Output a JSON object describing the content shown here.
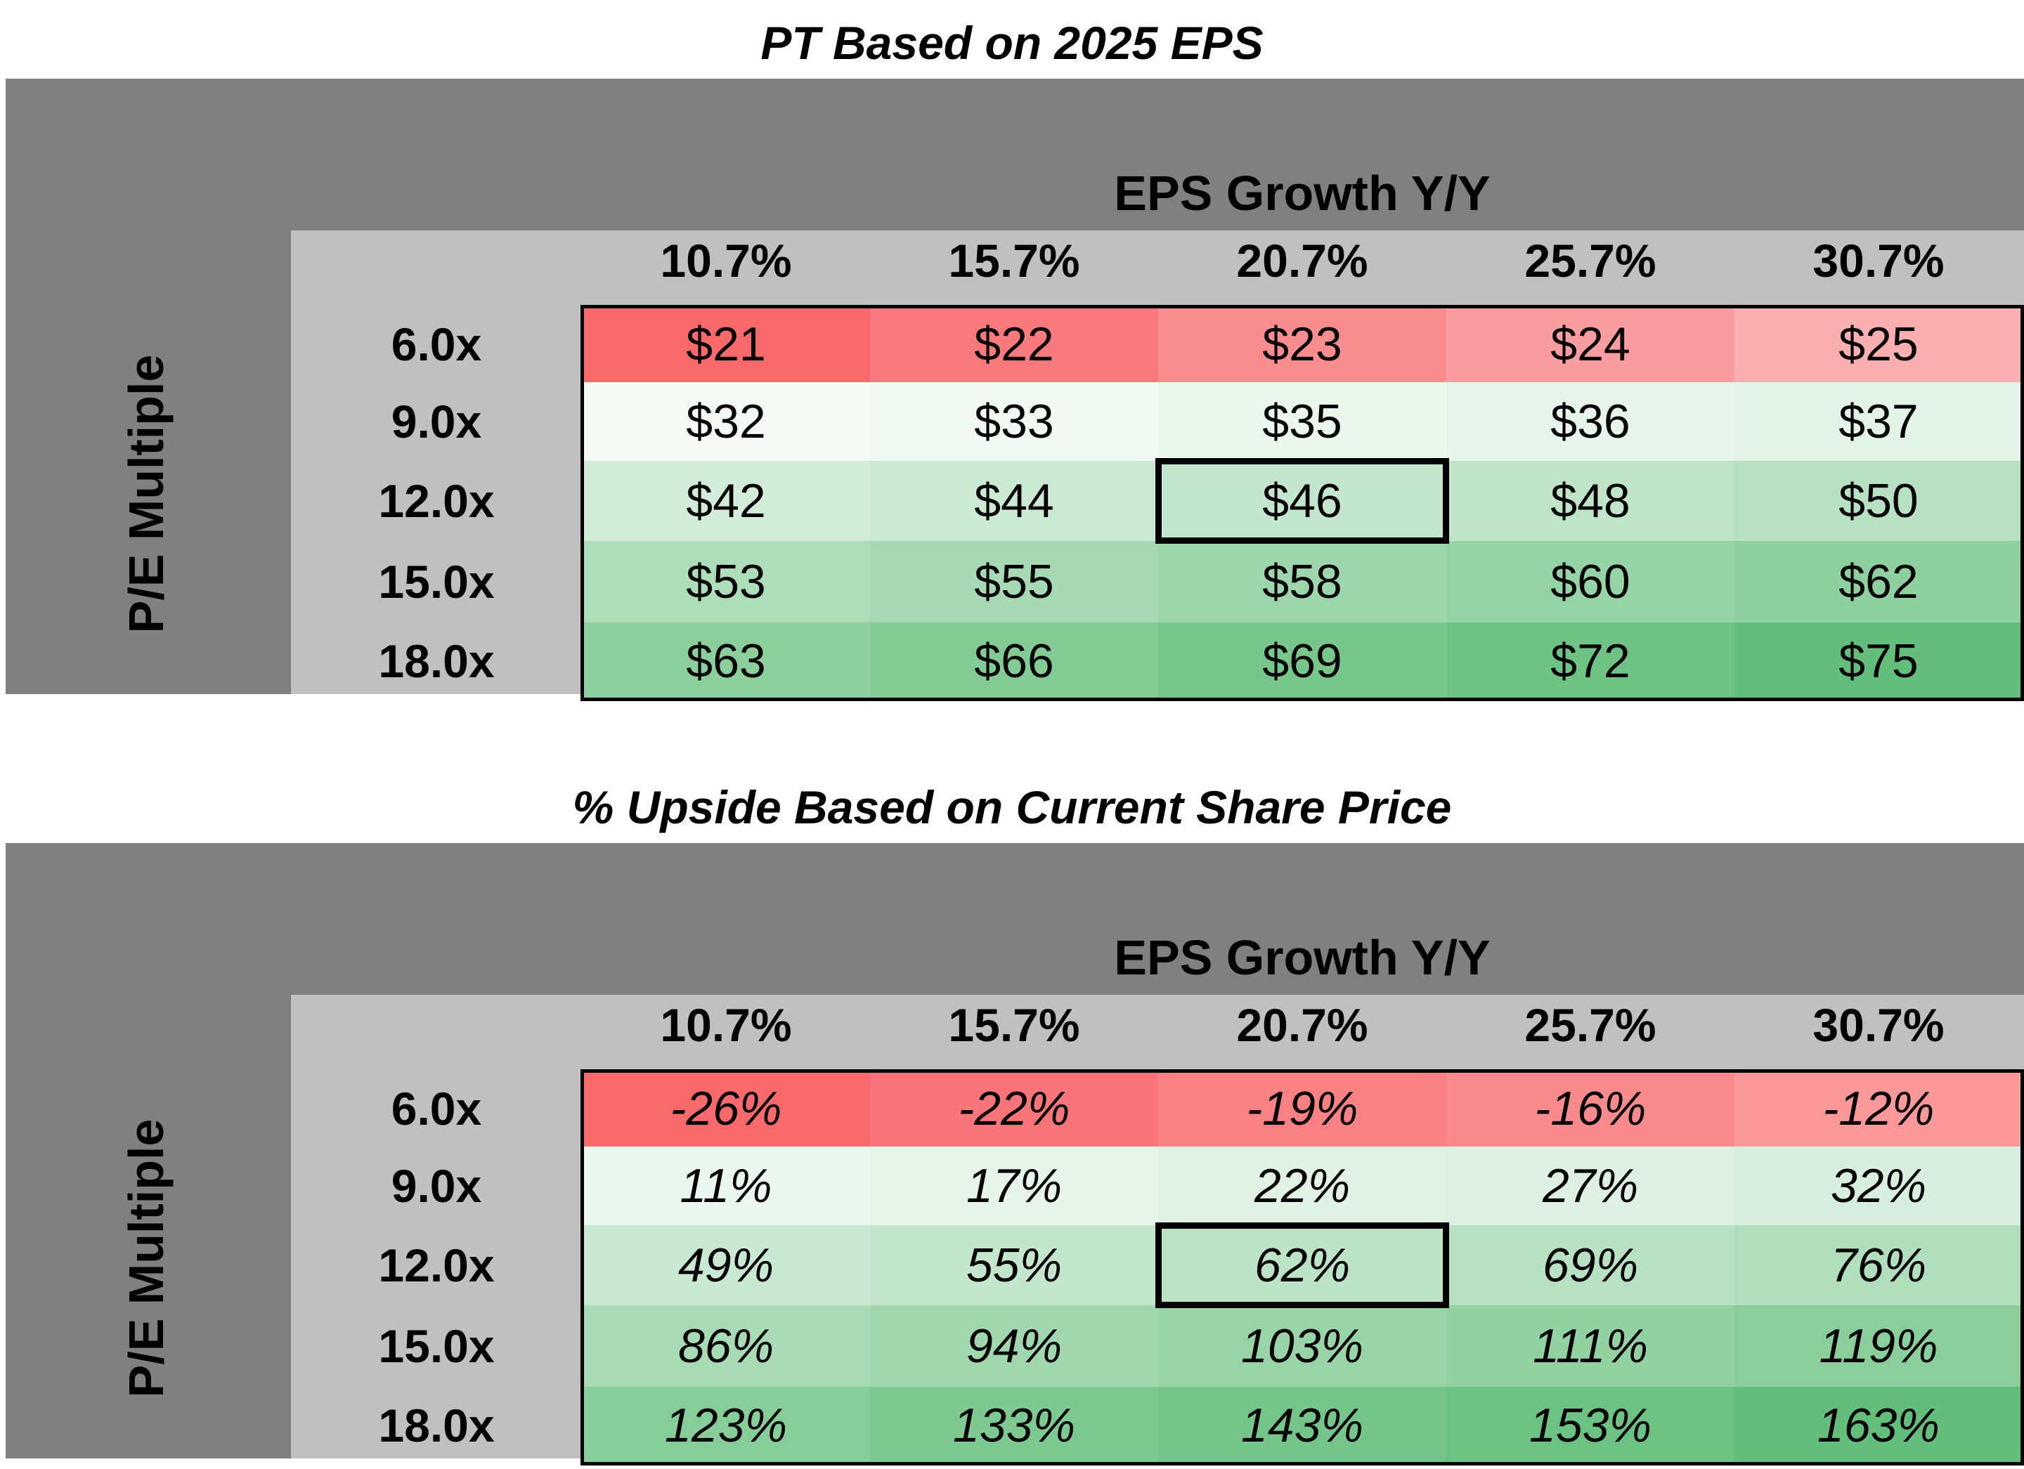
{
  "chart_data": [
    {
      "type": "table",
      "title": "PT Based on 2025 EPS",
      "column_axis_label": "EPS Growth Y/Y",
      "row_axis_label": "P/E Multiple",
      "columns": [
        "10.7%",
        "15.7%",
        "20.7%",
        "25.7%",
        "30.7%"
      ],
      "rows": [
        "6.0x",
        "9.0x",
        "12.0x",
        "15.0x",
        "18.0x"
      ],
      "values": [
        [
          "$21",
          "$22",
          "$23",
          "$24",
          "$25"
        ],
        [
          "$32",
          "$33",
          "$35",
          "$36",
          "$37"
        ],
        [
          "$42",
          "$44",
          "$46",
          "$48",
          "$50"
        ],
        [
          "$53",
          "$55",
          "$58",
          "$60",
          "$62"
        ],
        [
          "$63",
          "$66",
          "$69",
          "$72",
          "$75"
        ]
      ],
      "numeric_values": [
        [
          21,
          22,
          23,
          24,
          25
        ],
        [
          32,
          33,
          35,
          36,
          37
        ],
        [
          42,
          44,
          46,
          48,
          50
        ],
        [
          53,
          55,
          58,
          60,
          62
        ],
        [
          63,
          66,
          69,
          72,
          75
        ]
      ],
      "highlight": {
        "row": 2,
        "col": 2
      },
      "italic": false
    },
    {
      "type": "table",
      "title": "% Upside Based on Current Share Price",
      "column_axis_label": "EPS Growth Y/Y",
      "row_axis_label": "P/E Multiple",
      "columns": [
        "10.7%",
        "15.7%",
        "20.7%",
        "25.7%",
        "30.7%"
      ],
      "rows": [
        "6.0x",
        "9.0x",
        "12.0x",
        "15.0x",
        "18.0x"
      ],
      "values": [
        [
          "-26%",
          "-22%",
          "-19%",
          "-16%",
          "-12%"
        ],
        [
          "11%",
          "17%",
          "22%",
          "27%",
          "32%"
        ],
        [
          "49%",
          "55%",
          "62%",
          "69%",
          "76%"
        ],
        [
          "86%",
          "94%",
          "103%",
          "111%",
          "119%"
        ],
        [
          "123%",
          "133%",
          "143%",
          "153%",
          "163%"
        ]
      ],
      "numeric_values": [
        [
          -26,
          -22,
          -19,
          -16,
          -12
        ],
        [
          11,
          17,
          22,
          27,
          32
        ],
        [
          49,
          55,
          62,
          69,
          76
        ],
        [
          86,
          94,
          103,
          111,
          119
        ],
        [
          123,
          133,
          143,
          153,
          163
        ]
      ],
      "highlight": {
        "row": 2,
        "col": 2
      },
      "italic": true
    }
  ],
  "colors": {
    "outer_band": "#808080",
    "inner_band": "#c0c0c0",
    "neg_strong": "#f8696b",
    "neg_light": "#fbc0c3",
    "pos_light": "#f5faf6",
    "pos_strong": "#63be7b"
  }
}
